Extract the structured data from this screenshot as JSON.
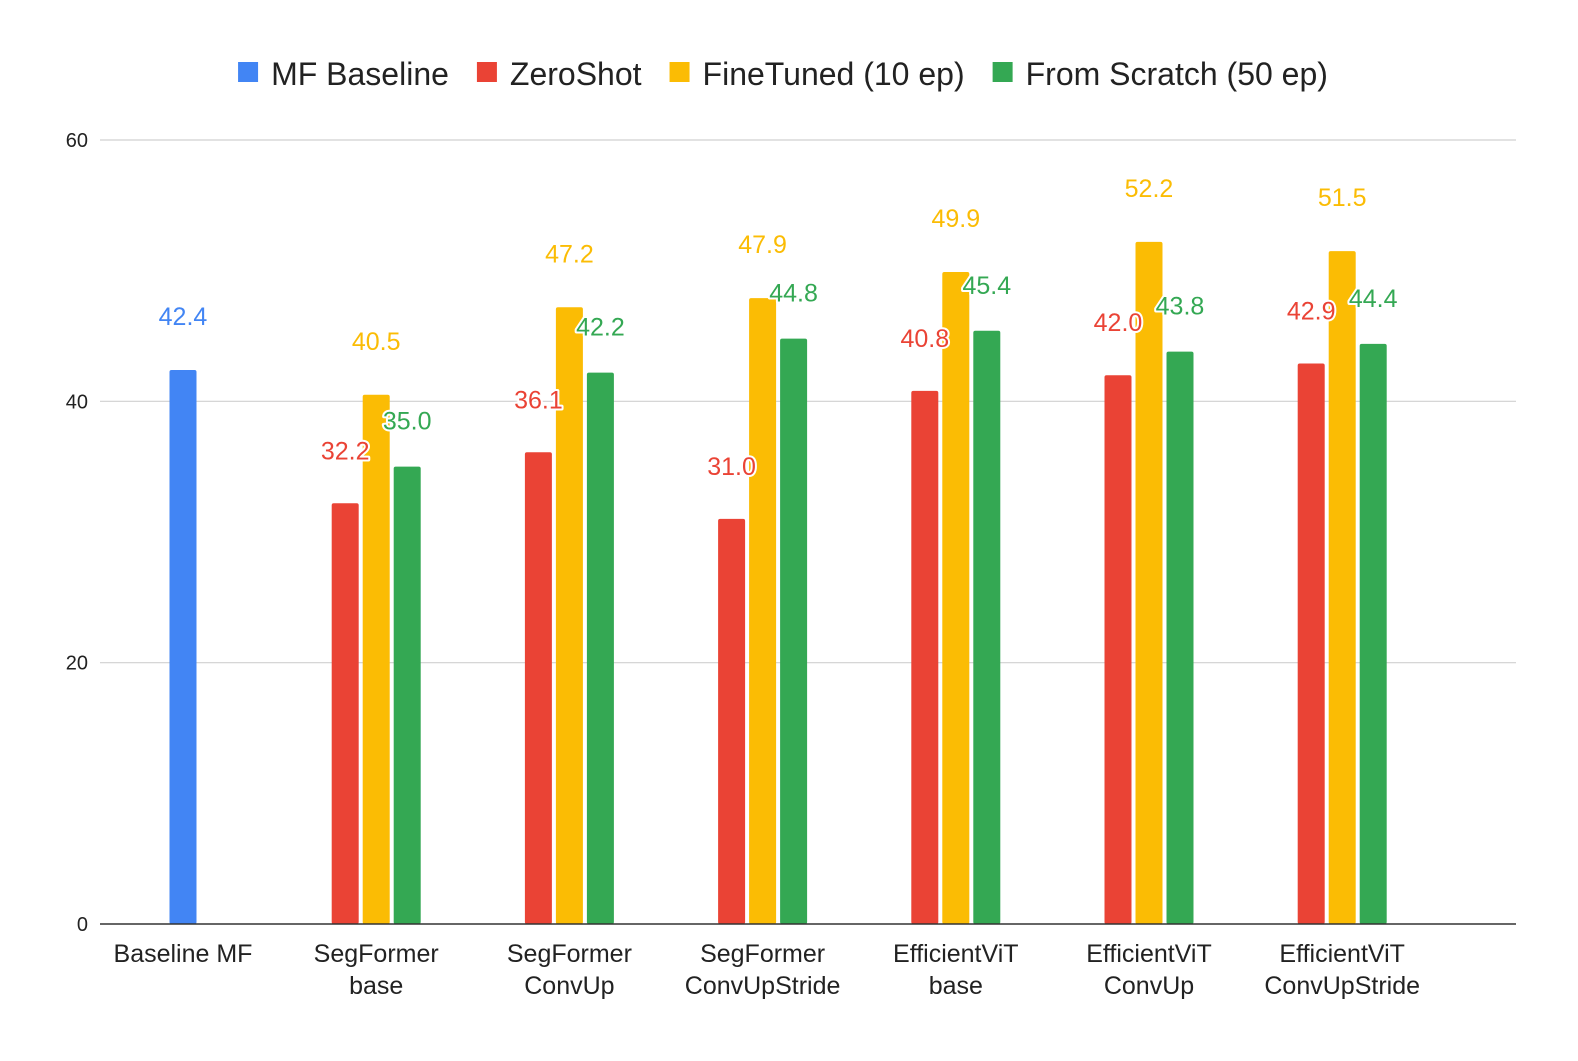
{
  "chart_data": {
    "type": "bar",
    "title": "",
    "xlabel": "",
    "ylabel": "",
    "ylim": [
      0,
      60
    ],
    "yticks": [
      "0",
      "20",
      "40",
      "60"
    ],
    "grid": true,
    "legend_position": "top-center",
    "categories": [
      [
        "Baseline MF"
      ],
      [
        "SegFormer",
        "base"
      ],
      [
        "SegFormer",
        "ConvUp"
      ],
      [
        "SegFormer",
        "ConvUpStride"
      ],
      [
        "EfficientViT",
        "base"
      ],
      [
        "EfficientViT",
        "ConvUp"
      ],
      [
        "EfficientViT",
        "ConvUpStride"
      ]
    ],
    "series": [
      {
        "name": "MF Baseline",
        "color": "#4285F4",
        "values": [
          42.4,
          null,
          null,
          null,
          null,
          null,
          null
        ],
        "labels": [
          "42.4",
          null,
          null,
          null,
          null,
          null,
          null
        ]
      },
      {
        "name": "ZeroShot",
        "color": "#EA4335",
        "values": [
          null,
          32.2,
          36.1,
          31.0,
          40.8,
          42.0,
          42.9
        ],
        "labels": [
          null,
          "32.2",
          "36.1",
          "31.0",
          "40.8",
          "42.0",
          "42.9"
        ]
      },
      {
        "name": "FineTuned (10 ep)",
        "color": "#FBBC04",
        "values": [
          null,
          40.5,
          47.2,
          47.9,
          49.9,
          52.2,
          51.5
        ],
        "labels": [
          null,
          "40.5",
          "47.2",
          "47.9",
          "49.9",
          "52.2",
          "51.5"
        ]
      },
      {
        "name": "From Scratch (50 ep)",
        "color": "#34A853",
        "values": [
          null,
          35.0,
          42.2,
          44.8,
          45.4,
          43.8,
          44.4
        ],
        "labels": [
          null,
          "35.0",
          "42.2",
          "44.8",
          "45.4",
          "43.8",
          "44.4"
        ]
      }
    ]
  }
}
